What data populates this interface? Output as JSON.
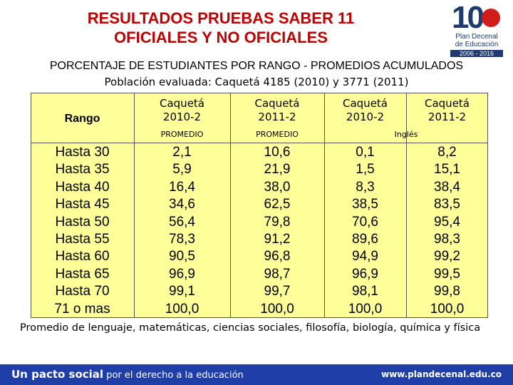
{
  "title": {
    "line1": "RESULTADOS PRUEBAS SABER 11",
    "line2": "OFICIALES Y NO OFICIALES"
  },
  "logo": {
    "numeral": "10",
    "line1": "Plan Decenal",
    "line2": "de Educación",
    "years": "2006 - 2016"
  },
  "subtitle": {
    "line1": "PORCENTAJE DE ESTUDIANTES POR RANGO - PROMEDIOS ACUMULADOS",
    "line2": "Población evaluada: Caquetá 4185 (2010) y 3771 (2011)"
  },
  "table": {
    "rango_header": "Rango",
    "columns": [
      {
        "line1": "Caquetá",
        "line2": "2010-2"
      },
      {
        "line1": "Caquetá",
        "line2": "2011-2"
      },
      {
        "line1": "Caquetá",
        "line2": "2010-2"
      },
      {
        "line1": "Caquetá",
        "line2": "2011-2"
      }
    ],
    "sub_promedio_1": "PROMEDIO",
    "sub_promedio_2": "PROMEDIO",
    "sub_ingles": "Inglés",
    "rango": [
      "Hasta 30",
      "Hasta 35",
      "Hasta 40",
      "Hasta 45",
      "Hasta 50",
      "Hasta 55",
      "Hasta 60",
      "Hasta 65",
      "Hasta 70",
      "71 o mas"
    ],
    "prom_2010": [
      "2,1",
      "5,9",
      "16,4",
      "34,6",
      "56,4",
      "78,3",
      "90,5",
      "96,9",
      "99,1",
      "100,0"
    ],
    "prom_2011": [
      "10,6",
      "21,9",
      "38,0",
      "62,5",
      "79,8",
      "91,2",
      "96,8",
      "98,7",
      "99,7",
      "100,0"
    ],
    "ing_2010": [
      "0,1",
      "1,5",
      "8,3",
      "38,5",
      "70,6",
      "89,6",
      "94,9",
      "96,9",
      "98,1",
      "100,0"
    ],
    "ing_2011": [
      "8,2",
      "15,1",
      "38,4",
      "83,5",
      "95,4",
      "98,3",
      "99,2",
      "99,5",
      "99,8",
      "100,0"
    ]
  },
  "note": "Promedio de lenguaje, matemáticas, ciencias sociales, filosofía, biología, química y física",
  "footer": {
    "slogan_bold": "Un pacto social",
    "slogan_rest": " por el derecho a la educación",
    "url": "www.plandecenal.edu.co"
  },
  "colors": {
    "title": "#c00000",
    "table_bg": "#ffff99",
    "footer_bg": "#1f3ea8"
  }
}
